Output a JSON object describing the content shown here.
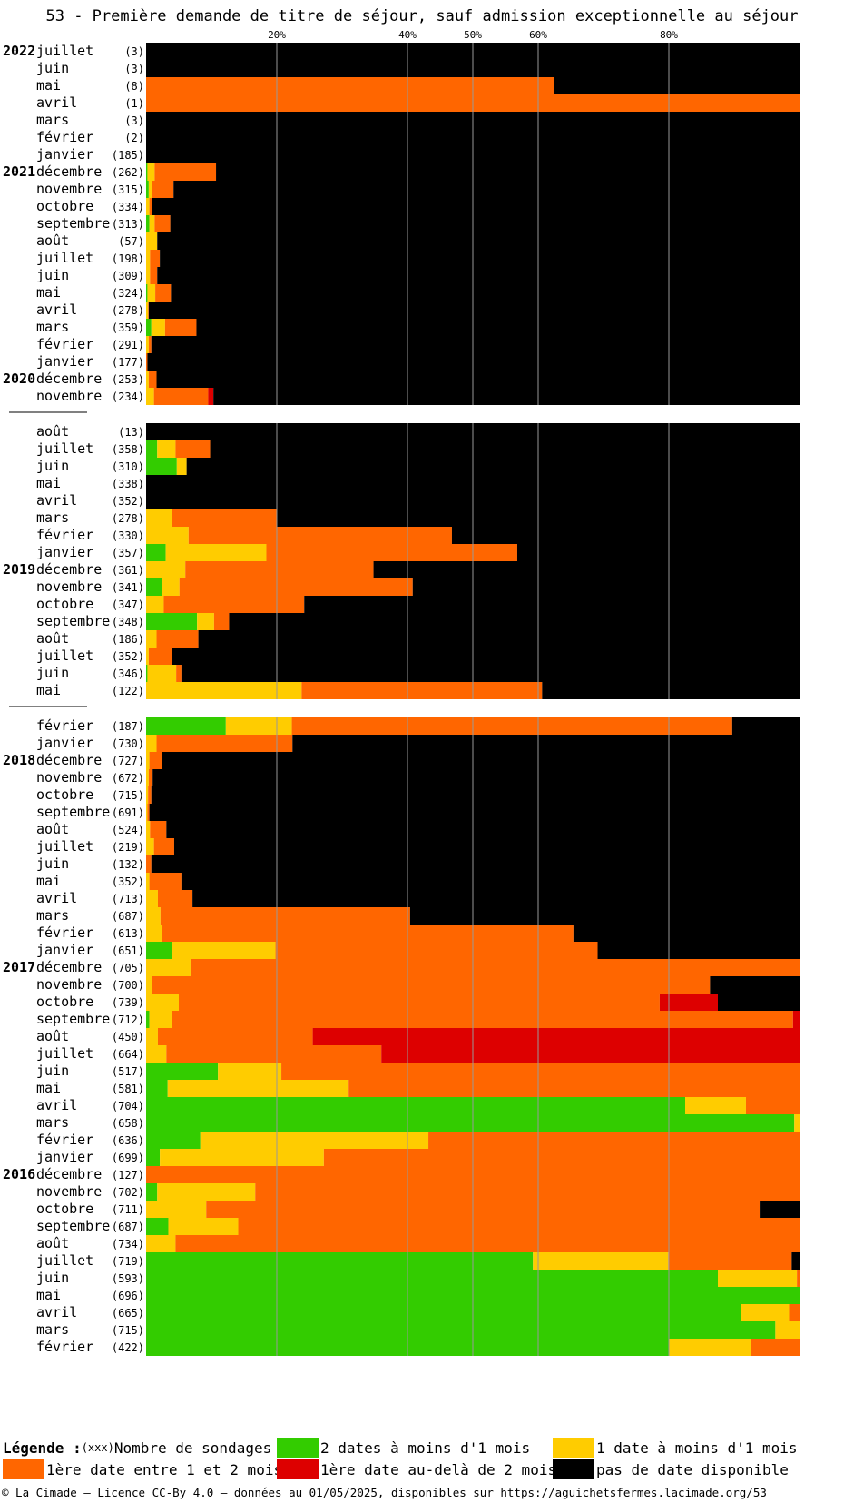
{
  "title": "53 - Première demande de titre de séjour, sauf admission exceptionnelle au séjour",
  "colors": {
    "green": "#33cc00",
    "yellow": "#ffcc00",
    "orange": "#ff6600",
    "red": "#dd0000",
    "black": "#000000"
  },
  "legend": {
    "heading": "Légende :",
    "count_marker": "(xxx)",
    "count_label": "Nombre de sondages",
    "items": [
      {
        "key": "green",
        "label": "2 dates à moins d'1 mois"
      },
      {
        "key": "yellow",
        "label": "1 date à moins d'1 mois"
      },
      {
        "key": "orange",
        "label": "1ère date entre 1 et 2 mois"
      },
      {
        "key": "red",
        "label": "1ère date au-delà de 2 mois"
      },
      {
        "key": "black",
        "label": "pas de date disponible"
      }
    ]
  },
  "footer": "© La Cimade — Licence CC-By 4.0 — données au 01/05/2025, disponibles sur https://aguichetsfermes.lacimade.org/53",
  "chart_data": {
    "type": "bar",
    "orientation": "horizontal-stacked-100",
    "x_ticks": [
      {
        "value": 20,
        "label": "20%"
      },
      {
        "value": 40,
        "label": "40%"
      },
      {
        "value": 50,
        "label": "50%"
      },
      {
        "value": 60,
        "label": "60%"
      },
      {
        "value": 80,
        "label": "80%"
      }
    ],
    "series_order": [
      "green",
      "yellow",
      "orange",
      "red",
      "black"
    ],
    "groups": [
      {
        "rows": [
          {
            "year": "2022",
            "month": "juillet",
            "count": "(3)",
            "values": [
              0,
              0,
              0,
              0,
              100
            ]
          },
          {
            "year": "",
            "month": "juin",
            "count": "(3)",
            "values": [
              0,
              0,
              0,
              0,
              100
            ]
          },
          {
            "year": "",
            "month": "mai",
            "count": "(8)",
            "values": [
              0,
              0,
              62.5,
              0,
              37.5
            ]
          },
          {
            "year": "",
            "month": "avril",
            "count": "(1)",
            "values": [
              0,
              0,
              100,
              0,
              0
            ]
          },
          {
            "year": "",
            "month": "mars",
            "count": "(3)",
            "values": [
              0,
              0,
              0,
              0,
              100
            ]
          },
          {
            "year": "",
            "month": "février",
            "count": "(2)",
            "values": [
              0,
              0,
              0,
              0,
              100
            ]
          },
          {
            "year": "",
            "month": "janvier",
            "count": "(185)",
            "values": [
              0,
              0,
              0,
              0,
              100
            ]
          },
          {
            "year": "2021",
            "month": "décembre",
            "count": "(262)",
            "values": [
              0.2,
              1.1,
              9.4,
              0,
              89.3
            ]
          },
          {
            "year": "",
            "month": "novembre",
            "count": "(315)",
            "values": [
              0.4,
              0.5,
              3.3,
              0,
              95.8
            ]
          },
          {
            "year": "",
            "month": "octobre",
            "count": "(334)",
            "values": [
              0,
              0.5,
              0.4,
              0,
              99.1
            ]
          },
          {
            "year": "",
            "month": "septembre",
            "count": "(313)",
            "values": [
              0.5,
              0.8,
              2.4,
              0,
              96.3
            ]
          },
          {
            "year": "",
            "month": "août",
            "count": "(57)",
            "values": [
              0,
              1.7,
              0,
              0,
              98.3
            ]
          },
          {
            "year": "",
            "month": "juillet",
            "count": "(198)",
            "values": [
              0,
              0.6,
              1.5,
              0,
              97.9
            ]
          },
          {
            "year": "",
            "month": "juin",
            "count": "(309)",
            "values": [
              0,
              0.6,
              1.1,
              0,
              98.3
            ]
          },
          {
            "year": "",
            "month": "mai",
            "count": "(324)",
            "values": [
              0.2,
              1.2,
              2.4,
              0,
              96.2
            ]
          },
          {
            "year": "",
            "month": "avril",
            "count": "(278)",
            "values": [
              0,
              0.3,
              0.1,
              0,
              99.6
            ]
          },
          {
            "year": "",
            "month": "mars",
            "count": "(359)",
            "values": [
              0.8,
              2.1,
              4.8,
              0,
              92.3
            ]
          },
          {
            "year": "",
            "month": "février",
            "count": "(291)",
            "values": [
              0,
              0.4,
              0.4,
              0,
              99.2
            ]
          },
          {
            "year": "",
            "month": "janvier",
            "count": "(177)",
            "values": [
              0,
              0,
              0.2,
              0,
              99.8
            ]
          },
          {
            "year": "2020",
            "month": "décembre",
            "count": "(253)",
            "values": [
              0,
              0.4,
              1.2,
              0,
              98.4
            ]
          },
          {
            "year": "",
            "month": "novembre",
            "count": "(234)",
            "values": [
              0,
              1.2,
              8.3,
              0.8,
              89.7
            ]
          }
        ]
      },
      {
        "rows": [
          {
            "year": "",
            "month": "août",
            "count": "(13)",
            "values": [
              0,
              0,
              0,
              0,
              100
            ]
          },
          {
            "year": "",
            "month": "juillet",
            "count": "(358)",
            "values": [
              1.7,
              2.8,
              5.3,
              0,
              90.2
            ]
          },
          {
            "year": "",
            "month": "juin",
            "count": "(310)",
            "values": [
              4.7,
              1.5,
              0,
              0,
              93.8
            ]
          },
          {
            "year": "",
            "month": "mai",
            "count": "(338)",
            "values": [
              0,
              0,
              0,
              0,
              100
            ]
          },
          {
            "year": "",
            "month": "avril",
            "count": "(352)",
            "values": [
              0,
              0,
              0,
              0,
              100
            ]
          },
          {
            "year": "",
            "month": "mars",
            "count": "(278)",
            "values": [
              0,
              3.9,
              16.1,
              0,
              80
            ]
          },
          {
            "year": "",
            "month": "février",
            "count": "(330)",
            "values": [
              0,
              6.5,
              40.3,
              0,
              53.2
            ]
          },
          {
            "year": "",
            "month": "janvier",
            "count": "(357)",
            "values": [
              3,
              15.4,
              38.4,
              0,
              43.2
            ]
          },
          {
            "year": "2019",
            "month": "décembre",
            "count": "(361)",
            "values": [
              0,
              6,
              28.8,
              0,
              65.2
            ]
          },
          {
            "year": "",
            "month": "novembre",
            "count": "(341)",
            "values": [
              2.5,
              2.6,
              35.7,
              0,
              59.2
            ]
          },
          {
            "year": "",
            "month": "octobre",
            "count": "(347)",
            "values": [
              0,
              2.7,
              21.5,
              0,
              75.8
            ]
          },
          {
            "year": "",
            "month": "septembre",
            "count": "(348)",
            "values": [
              7.8,
              2.6,
              2.3,
              0,
              87.3
            ]
          },
          {
            "year": "",
            "month": "août",
            "count": "(186)",
            "values": [
              0,
              1.6,
              6.4,
              0,
              92
            ]
          },
          {
            "year": "",
            "month": "juillet",
            "count": "(352)",
            "values": [
              0,
              0.4,
              3.6,
              0,
              96
            ]
          },
          {
            "year": "",
            "month": "juin",
            "count": "(346)",
            "values": [
              0.2,
              4.4,
              0.8,
              0,
              94.6
            ]
          },
          {
            "year": "",
            "month": "mai",
            "count": "(122)",
            "values": [
              0,
              23.8,
              36.8,
              0,
              39.4
            ]
          }
        ]
      },
      {
        "rows": [
          {
            "year": "",
            "month": "février",
            "count": "(187)",
            "values": [
              12.2,
              10.1,
              67.4,
              0,
              10.3
            ]
          },
          {
            "year": "",
            "month": "janvier",
            "count": "(730)",
            "values": [
              0,
              1.6,
              20.8,
              0,
              77.6
            ]
          },
          {
            "year": "2018",
            "month": "décembre",
            "count": "(727)",
            "values": [
              0,
              0.5,
              1.9,
              0,
              97.6
            ]
          },
          {
            "year": "",
            "month": "novembre",
            "count": "(672)",
            "values": [
              0,
              0.4,
              0.6,
              0,
              99
            ]
          },
          {
            "year": "",
            "month": "octobre",
            "count": "(715)",
            "values": [
              0,
              0.3,
              0.5,
              0,
              99.2
            ]
          },
          {
            "year": "",
            "month": "septembre",
            "count": "(691)",
            "values": [
              0,
              0.2,
              0.3,
              0,
              99.5
            ]
          },
          {
            "year": "",
            "month": "août",
            "count": "(524)",
            "values": [
              0,
              0.6,
              2.5,
              0,
              96.9
            ]
          },
          {
            "year": "",
            "month": "juillet",
            "count": "(219)",
            "values": [
              0,
              1.2,
              3.1,
              0,
              95.7
            ]
          },
          {
            "year": "",
            "month": "juin",
            "count": "(132)",
            "values": [
              0,
              0,
              0.8,
              0,
              99.2
            ]
          },
          {
            "year": "",
            "month": "mai",
            "count": "(352)",
            "values": [
              0,
              0.5,
              4.9,
              0,
              94.6
            ]
          },
          {
            "year": "",
            "month": "avril",
            "count": "(713)",
            "values": [
              0,
              1.8,
              5.3,
              0,
              92.9
            ]
          },
          {
            "year": "",
            "month": "mars",
            "count": "(687)",
            "values": [
              0,
              2.2,
              38.2,
              0,
              59.6
            ]
          },
          {
            "year": "",
            "month": "février",
            "count": "(613)",
            "values": [
              0,
              2.5,
              62.9,
              0,
              34.6
            ]
          },
          {
            "year": "",
            "month": "janvier",
            "count": "(651)",
            "values": [
              3.9,
              15.9,
              49.3,
              0,
              30.9
            ]
          },
          {
            "year": "2017",
            "month": "décembre",
            "count": "(705)",
            "values": [
              0,
              6.8,
              93.2,
              0,
              0
            ]
          },
          {
            "year": "",
            "month": "novembre",
            "count": "(700)",
            "values": [
              0,
              0.9,
              85.4,
              0,
              13.7
            ]
          },
          {
            "year": "",
            "month": "octobre",
            "count": "(739)",
            "values": [
              0,
              5,
              73.6,
              8.9,
              12.5
            ]
          },
          {
            "year": "",
            "month": "septembre",
            "count": "(712)",
            "values": [
              0.5,
              3.5,
              95,
              1,
              0
            ]
          },
          {
            "year": "",
            "month": "août",
            "count": "(450)",
            "values": [
              0,
              1.8,
              23.7,
              74.5,
              0
            ]
          },
          {
            "year": "",
            "month": "juillet",
            "count": "(664)",
            "values": [
              0,
              3.1,
              32.9,
              64,
              0
            ]
          },
          {
            "year": "",
            "month": "juin",
            "count": "(517)",
            "values": [
              11,
              9.7,
              79.3,
              0,
              0
            ]
          },
          {
            "year": "",
            "month": "mai",
            "count": "(581)",
            "values": [
              3.3,
              27.7,
              69,
              0,
              0
            ]
          },
          {
            "year": "",
            "month": "avril",
            "count": "(704)",
            "values": [
              82.5,
              9.3,
              8.2,
              0,
              0
            ]
          },
          {
            "year": "",
            "month": "mars",
            "count": "(658)",
            "values": [
              99.2,
              0.8,
              0,
              0,
              0
            ]
          },
          {
            "year": "",
            "month": "février",
            "count": "(636)",
            "values": [
              8.3,
              34.9,
              56.8,
              0,
              0
            ]
          },
          {
            "year": "",
            "month": "janvier",
            "count": "(699)",
            "values": [
              2.1,
              25.1,
              72.8,
              0,
              0
            ]
          },
          {
            "year": "2016",
            "month": "décembre",
            "count": "(127)",
            "values": [
              0,
              0,
              100,
              0,
              0
            ]
          },
          {
            "year": "",
            "month": "novembre",
            "count": "(702)",
            "values": [
              1.7,
              15,
              83.3,
              0,
              0
            ]
          },
          {
            "year": "",
            "month": "octobre",
            "count": "(711)",
            "values": [
              0,
              9.2,
              84.7,
              0,
              6.1
            ]
          },
          {
            "year": "",
            "month": "septembre",
            "count": "(687)",
            "values": [
              3.4,
              10.7,
              85.9,
              0,
              0
            ]
          },
          {
            "year": "",
            "month": "août",
            "count": "(734)",
            "values": [
              0,
              4.5,
              95.5,
              0,
              0
            ]
          },
          {
            "year": "",
            "month": "juillet",
            "count": "(719)",
            "values": [
              59.2,
              20.7,
              18.9,
              0,
              1.2
            ]
          },
          {
            "year": "",
            "month": "juin",
            "count": "(593)",
            "values": [
              87.5,
              12.1,
              0.4,
              0,
              0
            ]
          },
          {
            "year": "",
            "month": "mai",
            "count": "(696)",
            "values": [
              100,
              0,
              0,
              0,
              0
            ]
          },
          {
            "year": "",
            "month": "avril",
            "count": "(665)",
            "values": [
              91.1,
              7.3,
              1.6,
              0,
              0
            ]
          },
          {
            "year": "",
            "month": "mars",
            "count": "(715)",
            "values": [
              96.3,
              3.7,
              0,
              0,
              0
            ]
          },
          {
            "year": "",
            "month": "février",
            "count": "(422)",
            "values": [
              80,
              12.6,
              7.4,
              0,
              0
            ]
          }
        ]
      }
    ]
  }
}
